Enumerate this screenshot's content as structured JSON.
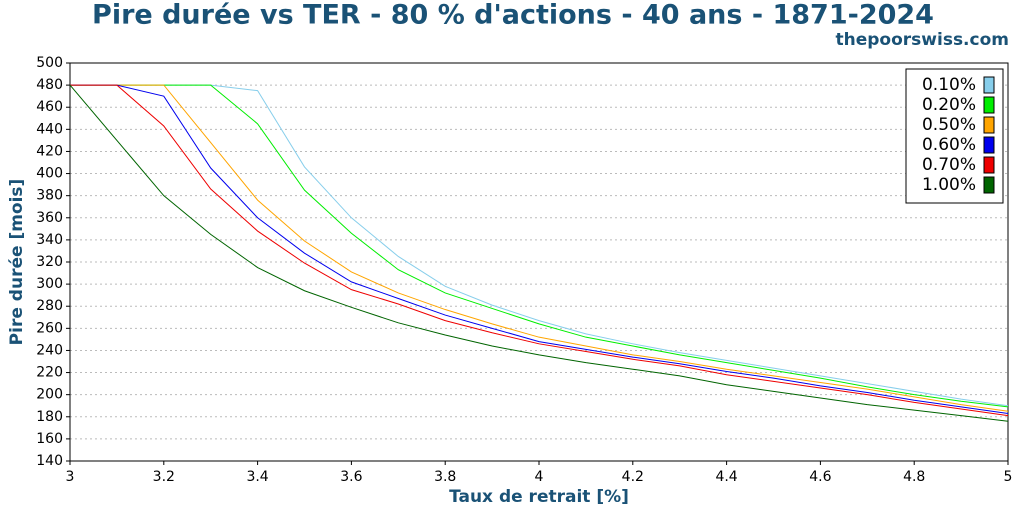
{
  "chart_data": {
    "type": "line",
    "title": "Pire durée vs TER - 80 % d'actions - 40 ans - 1871-2024",
    "source": "thepoorswiss.com",
    "x_label": "Taux de retrait [%]",
    "y_label": "Pire durée [mois]",
    "x": [
      3,
      3.1,
      3.2,
      3.3,
      3.4,
      3.5,
      3.6,
      3.7,
      3.8,
      3.9,
      4,
      4.1,
      4.2,
      4.3,
      4.4,
      4.5,
      4.6,
      4.7,
      4.8,
      4.9,
      5
    ],
    "series": [
      {
        "name": "0.10%",
        "color": "#87ceeb",
        "values": [
          480,
          480,
          480,
          480,
          475,
          406,
          360,
          325,
          298,
          281,
          267,
          255,
          246,
          238,
          231,
          224,
          217,
          210,
          203,
          196,
          190
        ]
      },
      {
        "name": "0.20%",
        "color": "#00ee00",
        "values": [
          480,
          480,
          480,
          480,
          445,
          385,
          346,
          313,
          292,
          278,
          264,
          252,
          244,
          236,
          229,
          222,
          215,
          207,
          200,
          194,
          189
        ]
      },
      {
        "name": "0.50%",
        "color": "#ffa500",
        "values": [
          480,
          480,
          480,
          428,
          376,
          339,
          311,
          292,
          277,
          264,
          252,
          244,
          236,
          230,
          223,
          217,
          211,
          205,
          198,
          191,
          185
        ]
      },
      {
        "name": "0.60%",
        "color": "#0000ee",
        "values": [
          480,
          480,
          470,
          405,
          360,
          328,
          302,
          287,
          272,
          260,
          248,
          241,
          234,
          228,
          221,
          215,
          208,
          202,
          195,
          189,
          183
        ]
      },
      {
        "name": "0.70%",
        "color": "#ee0000",
        "values": [
          480,
          480,
          443,
          386,
          348,
          319,
          295,
          282,
          267,
          256,
          246,
          239,
          232,
          226,
          218,
          212,
          206,
          200,
          193,
          187,
          181
        ]
      },
      {
        "name": "1.00%",
        "color": "#006400",
        "values": [
          480,
          430,
          380,
          345,
          315,
          294,
          279,
          265,
          254,
          244,
          236,
          229,
          223,
          217,
          209,
          203,
          197,
          191,
          186,
          181,
          176
        ]
      }
    ],
    "xlim": [
      3,
      5
    ],
    "xticks": [
      3,
      3.2,
      3.4,
      3.6,
      3.8,
      4,
      4.2,
      4.4,
      4.6,
      4.8,
      5
    ],
    "ylim": [
      140,
      500
    ],
    "yticks": [
      140,
      160,
      180,
      200,
      220,
      240,
      260,
      280,
      300,
      320,
      340,
      360,
      380,
      400,
      420,
      440,
      460,
      480,
      500
    ],
    "grid": true,
    "legend": "upper right"
  }
}
